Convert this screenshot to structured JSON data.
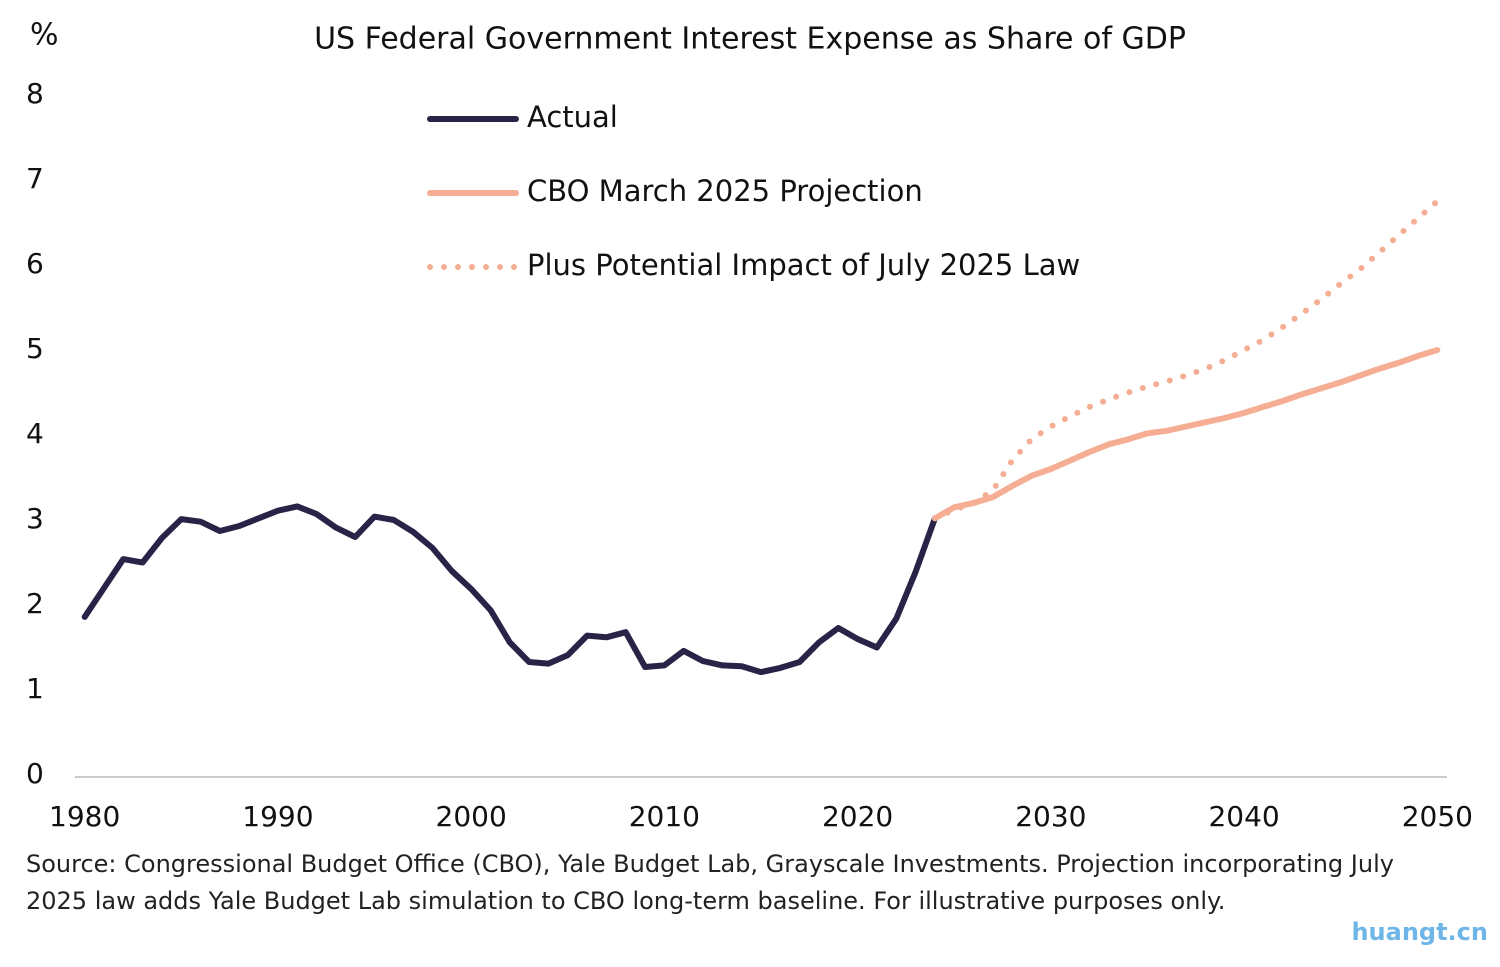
{
  "chart_data": {
    "type": "line",
    "title": "US Federal Government Interest Expense as Share of GDP",
    "ylabel": "%",
    "source": "Source: Congressional Budget Office (CBO), Yale Budget Lab, Grayscale Investments. Projection incorporating July 2025 law adds Yale Budget Lab simulation to CBO long-term baseline. For illustrative purposes only.",
    "watermark": "huangt.cn",
    "x": [
      1980,
      1981,
      1982,
      1983,
      1984,
      1985,
      1986,
      1987,
      1988,
      1989,
      1990,
      1991,
      1992,
      1993,
      1994,
      1995,
      1996,
      1997,
      1998,
      1999,
      2000,
      2001,
      2002,
      2003,
      2004,
      2005,
      2006,
      2007,
      2008,
      2009,
      2010,
      2011,
      2012,
      2013,
      2014,
      2015,
      2016,
      2017,
      2018,
      2019,
      2020,
      2021,
      2022,
      2023,
      2024,
      2025,
      2026,
      2027,
      2028,
      2029,
      2030,
      2031,
      2032,
      2033,
      2034,
      2035,
      2036,
      2037,
      2038,
      2039,
      2040,
      2041,
      2042,
      2043,
      2044,
      2045,
      2046,
      2047,
      2048,
      2049,
      2050
    ],
    "series": [
      {
        "name": "Actual",
        "color": "#2b2347",
        "style": "solid",
        "values": [
          1.86,
          2.2,
          2.54,
          2.5,
          2.79,
          3.01,
          2.98,
          2.87,
          2.93,
          3.02,
          3.11,
          3.16,
          3.07,
          2.91,
          2.8,
          3.04,
          3.0,
          2.86,
          2.67,
          2.4,
          2.19,
          1.94,
          1.56,
          1.33,
          1.31,
          1.41,
          1.64,
          1.62,
          1.68,
          1.27,
          1.29,
          1.46,
          1.34,
          1.29,
          1.28,
          1.21,
          1.26,
          1.33,
          1.56,
          1.73,
          1.6,
          1.5,
          1.84,
          2.39,
          3.02,
          null,
          null,
          null,
          null,
          null,
          null,
          null,
          null,
          null,
          null,
          null,
          null,
          null,
          null,
          null,
          null,
          null,
          null,
          null,
          null,
          null,
          null,
          null,
          null,
          null,
          null
        ]
      },
      {
        "name": "CBO March 2025 Projection",
        "color": "#f5ae93",
        "style": "solid",
        "values": [
          null,
          null,
          null,
          null,
          null,
          null,
          null,
          null,
          null,
          null,
          null,
          null,
          null,
          null,
          null,
          null,
          null,
          null,
          null,
          null,
          null,
          null,
          null,
          null,
          null,
          null,
          null,
          null,
          null,
          null,
          null,
          null,
          null,
          null,
          null,
          null,
          null,
          null,
          null,
          null,
          null,
          null,
          null,
          null,
          3.02,
          3.15,
          3.2,
          3.27,
          3.4,
          3.52,
          3.6,
          3.7,
          3.8,
          3.89,
          3.95,
          4.02,
          4.05,
          4.1,
          4.15,
          4.2,
          4.26,
          4.33,
          4.4,
          4.48,
          4.55,
          4.62,
          4.7,
          4.78,
          4.85,
          4.93,
          5.0
        ]
      },
      {
        "name": "Plus Potential Impact of July 2025 Law",
        "color": "#f5ae93",
        "style": "dotted",
        "values": [
          null,
          null,
          null,
          null,
          null,
          null,
          null,
          null,
          null,
          null,
          null,
          null,
          null,
          null,
          null,
          null,
          null,
          null,
          null,
          null,
          null,
          null,
          null,
          null,
          null,
          null,
          null,
          null,
          null,
          null,
          null,
          null,
          null,
          null,
          null,
          null,
          null,
          null,
          null,
          null,
          null,
          null,
          null,
          null,
          3.02,
          3.12,
          3.2,
          3.35,
          3.7,
          3.95,
          4.1,
          4.22,
          4.33,
          4.42,
          4.5,
          4.57,
          4.63,
          4.7,
          4.78,
          4.88,
          5.0,
          5.12,
          5.27,
          5.43,
          5.6,
          5.78,
          5.95,
          6.15,
          6.35,
          6.55,
          6.75
        ]
      }
    ],
    "xlim": [
      1979.5,
      2050.5
    ],
    "xticks": [
      1980,
      1990,
      2000,
      2010,
      2020,
      2030,
      2040,
      2050
    ],
    "ylim": [
      0,
      8
    ],
    "yticks": [
      0,
      1,
      2,
      3,
      4,
      5,
      6,
      7,
      8
    ],
    "grid": false
  }
}
